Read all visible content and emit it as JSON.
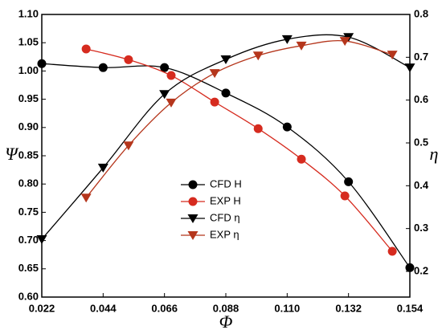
{
  "chart_data": {
    "type": "line",
    "xlabel": "Φ",
    "ylabel": "Ψ",
    "y2label": "η",
    "xlim": [
      0.022,
      0.154
    ],
    "xticks": [
      0.022,
      0.044,
      0.066,
      0.088,
      {
        "value": 0.11,
        "label": "0.110"
      },
      0.132,
      0.154
    ],
    "ylim": [
      0.6,
      1.1
    ],
    "yticks": [
      {
        "value": 0.6,
        "label": "0.60"
      },
      0.65,
      {
        "value": 0.7,
        "label": "0.70"
      },
      0.75,
      {
        "value": 0.8,
        "label": "0.80"
      },
      0.85,
      {
        "value": 0.9,
        "label": "0.90"
      },
      0.95,
      {
        "value": 1.0,
        "label": "1.00"
      },
      1.05,
      {
        "value": 1.1,
        "label": "1.10"
      }
    ],
    "y2lim": [
      0.14,
      0.8
    ],
    "y2ticks": [
      0.2,
      0.3,
      0.4,
      0.5,
      0.6,
      0.7,
      0.8
    ],
    "legend": "center",
    "series": [
      {
        "name": "CFD H",
        "color": "#000000",
        "marker": "circle",
        "x": [
          0.022,
          0.044,
          0.066,
          0.088,
          0.11,
          0.132,
          0.154
        ],
        "values": [
          1.013,
          1.006,
          1.006,
          0.961,
          0.901,
          0.804,
          0.652
        ]
      },
      {
        "name": "EXP H",
        "color": "#d62b1f",
        "marker": "circle",
        "x": [
          0.0379,
          0.0531,
          0.0684,
          0.084,
          0.0996,
          0.1151,
          0.1307,
          0.1477
        ],
        "values": [
          1.039,
          1.02,
          0.992,
          0.945,
          0.898,
          0.844,
          0.779,
          0.681
        ]
      },
      {
        "name": "CFD η",
        "color": "#000000",
        "marker": "triangle",
        "axis": "y2",
        "x": [
          0.022,
          0.044,
          0.066,
          0.088,
          0.11,
          0.132,
          0.154
        ],
        "values": [
          0.275,
          0.442,
          0.614,
          0.695,
          0.742,
          0.747,
          0.676
        ]
      },
      {
        "name": "EXP η",
        "color": "#b5361c",
        "marker": "triangle",
        "axis": "y2",
        "x": [
          0.0379,
          0.0531,
          0.0684,
          0.084,
          0.0996,
          0.1151,
          0.1307,
          0.1477
        ],
        "values": [
          0.372,
          0.494,
          0.594,
          0.663,
          0.704,
          0.727,
          0.738,
          0.706
        ]
      }
    ]
  }
}
